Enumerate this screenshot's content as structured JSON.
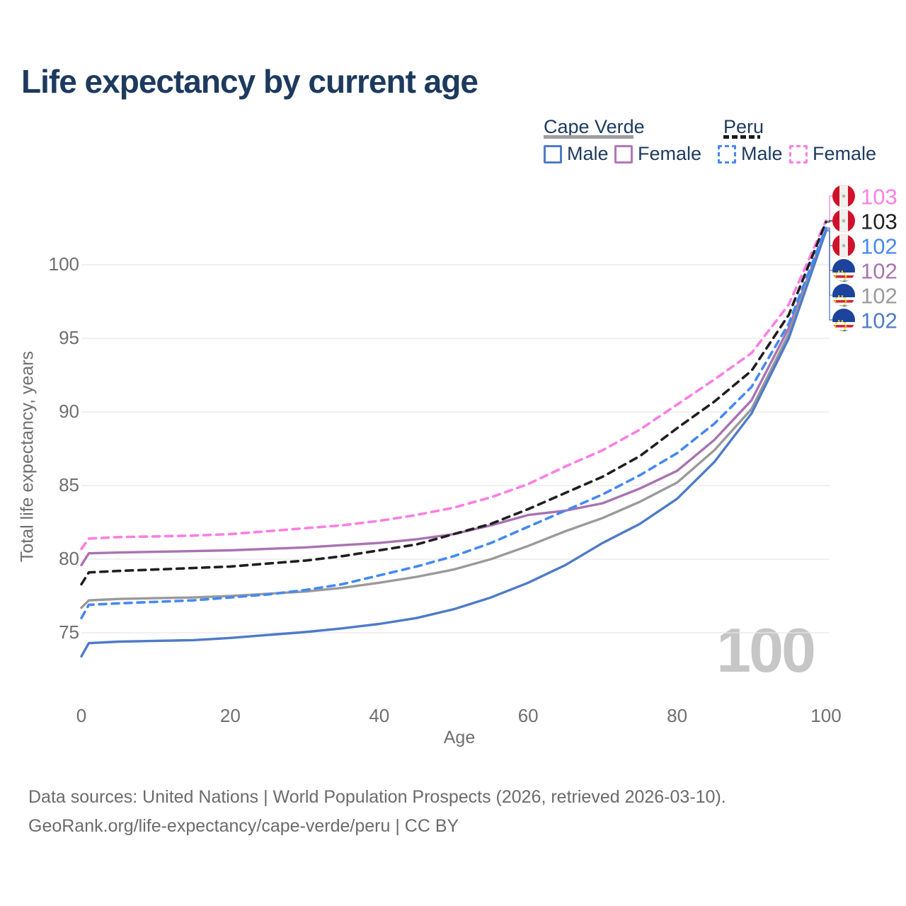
{
  "title": "Life expectancy by current age",
  "legend": {
    "groups": [
      {
        "country": "Cape Verde",
        "line_style": "solid",
        "key_color": "#9e9e9e",
        "items": [
          {
            "label": "Male",
            "color": "#4e7bc8",
            "dashed": false
          },
          {
            "label": "Female",
            "color": "#b277b8",
            "dashed": false
          }
        ]
      },
      {
        "country": "Peru",
        "line_style": "dashed",
        "key_color": "#1a1a1a",
        "items": [
          {
            "label": "Male",
            "color": "#4589f2",
            "dashed": true
          },
          {
            "label": "Female",
            "color": "#fb7ee3",
            "dashed": true
          }
        ]
      }
    ]
  },
  "watermark": "100",
  "footer": {
    "line1": "Data sources: United Nations | World Population Prospects (2026, retrieved 2026-03-10).",
    "line2": "GeoRank.org/life-expectancy/cape-verde/peru | CC BY"
  },
  "chart_data": {
    "type": "line",
    "title": "Life expectancy by current age",
    "xlabel": "Age",
    "ylabel": "Total life expectancy, years",
    "xlim": [
      0,
      100
    ],
    "ylim": [
      73,
      104
    ],
    "xticks": [
      0,
      20,
      40,
      60,
      80,
      100
    ],
    "yticks": [
      75,
      80,
      85,
      90,
      95,
      100
    ],
    "grid": "horizontal-only",
    "legend_position": "top-right",
    "x": [
      0,
      1,
      5,
      10,
      15,
      20,
      25,
      30,
      35,
      40,
      45,
      50,
      55,
      60,
      65,
      70,
      75,
      80,
      85,
      90,
      95,
      100
    ],
    "series": [
      {
        "name": "Peru Female",
        "country": "Peru",
        "sex": "female",
        "color": "#fb7ee3",
        "dashed": true,
        "end_label": "103",
        "flag": "peru",
        "values": [
          80.7,
          81.4,
          81.5,
          81.55,
          81.6,
          81.7,
          81.9,
          82.1,
          82.3,
          82.6,
          83.0,
          83.5,
          84.2,
          85.1,
          86.3,
          87.4,
          88.8,
          90.5,
          92.2,
          94.0,
          97.3,
          103.0
        ]
      },
      {
        "name": "Peru Both sexes",
        "country": "Peru",
        "sex": "all",
        "color": "#1f1f1f",
        "dashed": true,
        "end_label": "103",
        "flag": "peru",
        "values": [
          78.3,
          79.1,
          79.2,
          79.3,
          79.4,
          79.5,
          79.7,
          79.9,
          80.2,
          80.6,
          81.0,
          81.7,
          82.4,
          83.4,
          84.5,
          85.6,
          87.0,
          88.9,
          90.7,
          92.8,
          96.6,
          102.9
        ]
      },
      {
        "name": "Peru Male",
        "country": "Peru",
        "sex": "male",
        "color": "#4589f2",
        "dashed": true,
        "end_label": "102",
        "flag": "peru",
        "values": [
          76.0,
          76.9,
          77.0,
          77.1,
          77.2,
          77.4,
          77.6,
          77.9,
          78.3,
          78.9,
          79.5,
          80.2,
          81.1,
          82.2,
          83.3,
          84.4,
          85.7,
          87.2,
          89.2,
          91.7,
          96.0,
          102.5
        ]
      },
      {
        "name": "Cape Verde Female",
        "country": "Cape Verde",
        "sex": "female",
        "color": "#a873b2",
        "dashed": false,
        "end_label": "102",
        "flag": "cape-verde",
        "values": [
          79.6,
          80.4,
          80.45,
          80.5,
          80.55,
          80.6,
          80.7,
          80.8,
          80.95,
          81.1,
          81.35,
          81.7,
          82.3,
          83.0,
          83.3,
          83.8,
          84.8,
          86.0,
          88.1,
          90.8,
          95.7,
          102.4
        ]
      },
      {
        "name": "Cape Verde Both sexes",
        "country": "Cape Verde",
        "sex": "all",
        "color": "#9a9a9a",
        "dashed": false,
        "end_label": "102",
        "flag": "cape-verde",
        "values": [
          76.7,
          77.2,
          77.3,
          77.35,
          77.4,
          77.5,
          77.65,
          77.8,
          78.05,
          78.4,
          78.8,
          79.3,
          80.0,
          80.9,
          81.9,
          82.8,
          83.9,
          85.2,
          87.4,
          90.2,
          95.3,
          102.35
        ]
      },
      {
        "name": "Cape Verde Male",
        "country": "Cape Verde",
        "sex": "male",
        "color": "#4e7bc8",
        "dashed": false,
        "end_label": "102",
        "flag": "cape-verde",
        "values": [
          73.4,
          74.3,
          74.4,
          74.45,
          74.5,
          74.65,
          74.85,
          75.05,
          75.3,
          75.6,
          76.0,
          76.6,
          77.4,
          78.4,
          79.6,
          81.1,
          82.4,
          84.1,
          86.6,
          89.9,
          95.0,
          102.3
        ]
      }
    ]
  }
}
